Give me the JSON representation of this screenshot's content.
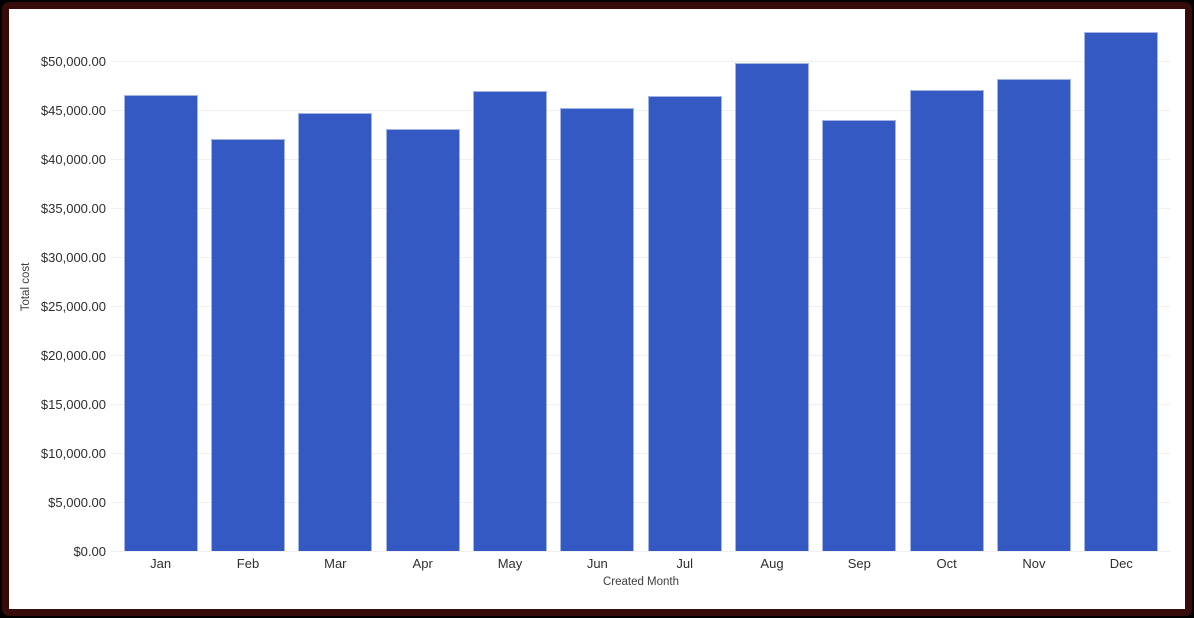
{
  "frame": {
    "outer_background": "#000000",
    "border_color": "#380b0b",
    "card_background": "#ffffff"
  },
  "chart_data": {
    "type": "bar",
    "title": "",
    "xlabel": "Created Month",
    "ylabel": "Total cost",
    "categories": [
      "Jan",
      "Feb",
      "Mar",
      "Apr",
      "May",
      "Jun",
      "Jul",
      "Aug",
      "Sep",
      "Oct",
      "Nov",
      "Dec"
    ],
    "series": [
      {
        "name": "Total cost",
        "values": [
          46600,
          42050,
          44700,
          43050,
          46950,
          45250,
          46450,
          49800,
          44000,
          47100,
          48150,
          53000
        ]
      }
    ],
    "ytick_step": 5000,
    "ytick_labels": [
      "$0.00",
      "$5,000.00",
      "$10,000.00",
      "$15,000.00",
      "$20,000.00",
      "$25,000.00",
      "$30,000.00",
      "$35,000.00",
      "$40,000.00",
      "$45,000.00",
      "$50,000.00"
    ],
    "ylim": [
      0,
      53400
    ],
    "grid": true,
    "legend_position": "none",
    "bar_color": "#3459c3",
    "bar_edge_color": "#a2b3e6",
    "grid_color": "#efefef",
    "tick_label_color": "#2e2e2e",
    "axis_title_color": "#3c3c3c"
  }
}
